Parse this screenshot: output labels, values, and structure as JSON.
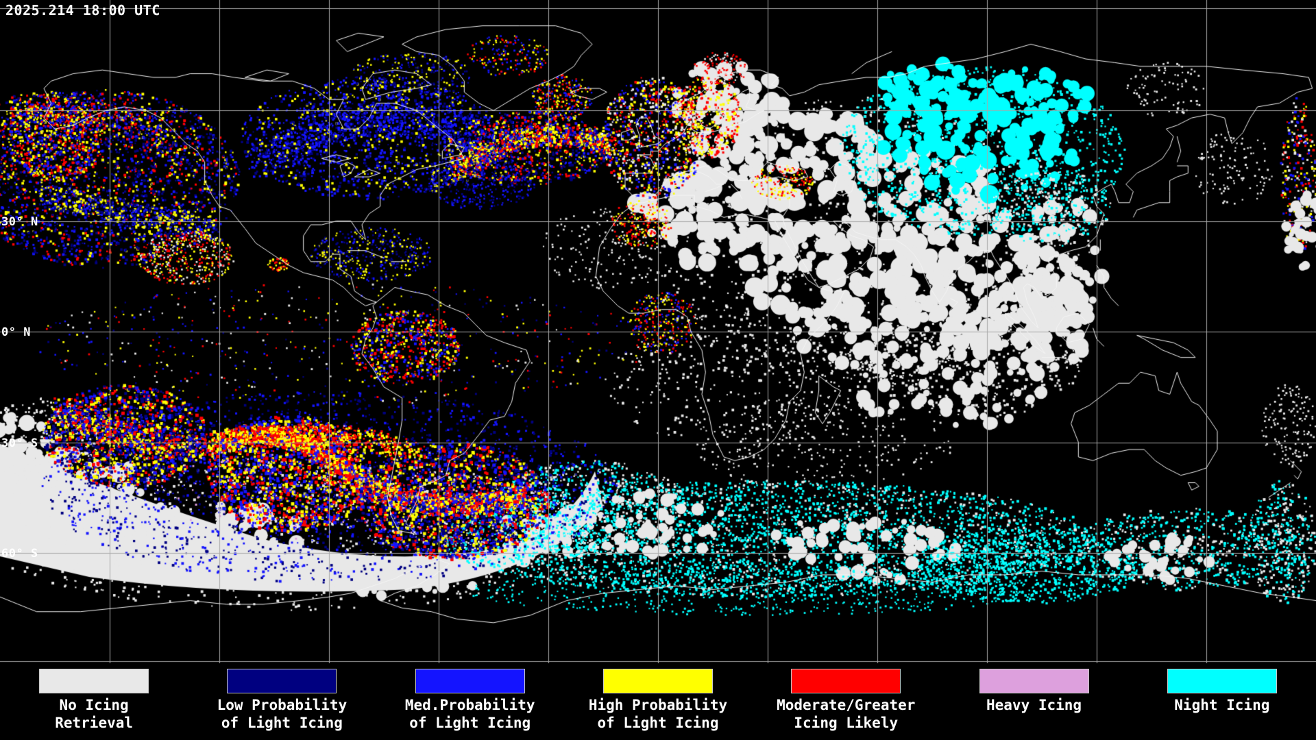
{
  "header": {
    "timestamp": "2025.214 18:00 UTC"
  },
  "map": {
    "lat_labels": [
      {
        "text": "30° N"
      },
      {
        "text": "0° N"
      },
      {
        "text": "30° S"
      },
      {
        "text": "60° S"
      }
    ]
  },
  "legend": {
    "items": [
      {
        "name": "no-icing-retrieval",
        "color": "#E8E8E8",
        "line1": "No Icing",
        "line2": "Retrieval"
      },
      {
        "name": "low-probability-of-light-icing",
        "color": "#000080",
        "line1": "Low Probability",
        "line2": "of Light Icing"
      },
      {
        "name": "med-probability-of-light-icing",
        "color": "#1414FF",
        "line1": "Med.Probability",
        "line2": "of Light Icing"
      },
      {
        "name": "high-probability-of-light-icing",
        "color": "#FFFF00",
        "line1": "High Probability",
        "line2": "of Light Icing"
      },
      {
        "name": "moderate-greater-icing-likely",
        "color": "#FF0000",
        "line1": "Moderate/Greater",
        "line2": "Icing Likely"
      },
      {
        "name": "heavy-icing",
        "color": "#DDA0DD",
        "line1": "Heavy Icing"
      },
      {
        "name": "night-icing",
        "color": "#00FFFF",
        "line1": "Night Icing"
      }
    ]
  },
  "colors": {
    "background": "#000000",
    "coastline": "#F5F5F5",
    "grid": "#A9A9A9",
    "text": "#FFFFFF"
  }
}
